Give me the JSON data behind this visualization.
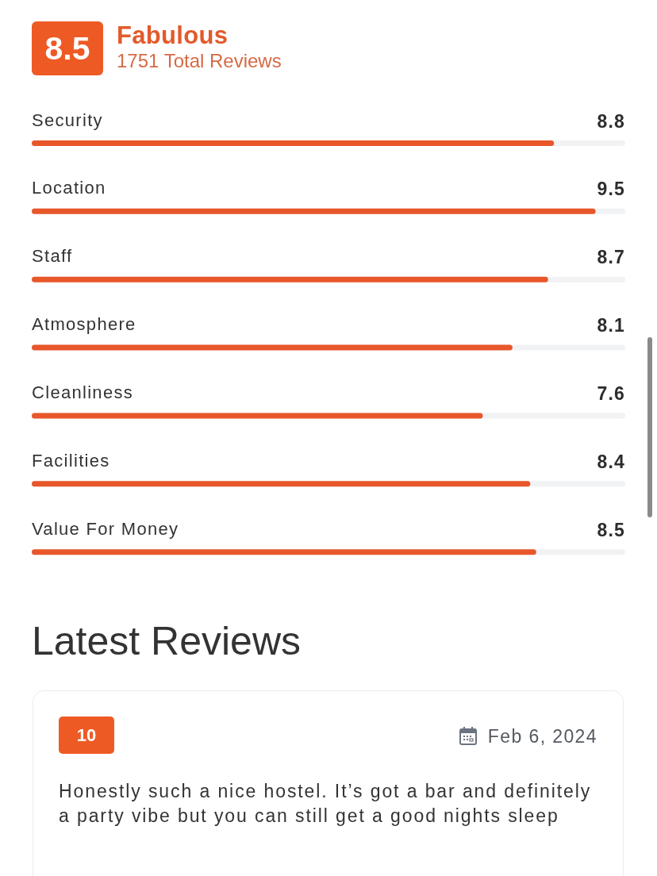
{
  "chart_data": {
    "type": "bar",
    "orientation": "horizontal",
    "title": "Fabulous",
    "subtitle": "1751 Total Reviews",
    "categories": [
      "Security",
      "Location",
      "Staff",
      "Atmosphere",
      "Cleanliness",
      "Facilities",
      "Value For Money"
    ],
    "values": [
      8.8,
      9.5,
      8.7,
      8.1,
      7.6,
      8.4,
      8.5
    ],
    "color": "#e8572a",
    "xlim": [
      0,
      10
    ],
    "tick_labels": "y",
    "data_labels": true,
    "annotations": [
      "8.5",
      "Latest Reviews",
      "10",
      "Feb 6, 2024",
      "Honestly such a nice hostel. It’s got a bar and definitely a party vibe but you can still get a good nights sleep"
    ]
  }
}
